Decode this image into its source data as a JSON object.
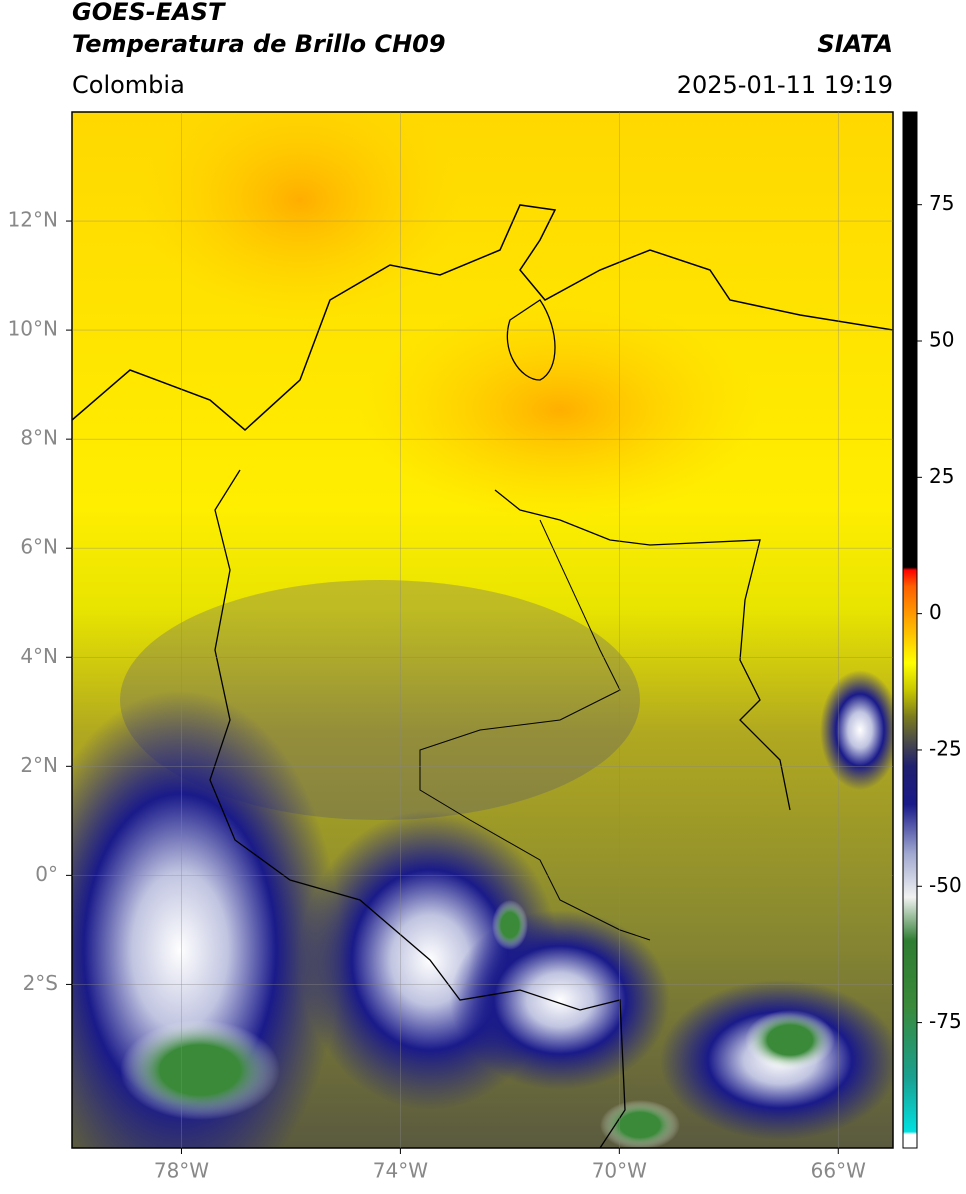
{
  "header": {
    "satellite": "GOES-EAST",
    "product": "Temperatura de Brillo CH09",
    "source": "SIATA",
    "region": "Colombia",
    "datetime": "2025-01-11 19:19"
  },
  "map": {
    "xlim": [
      -80,
      -65
    ],
    "ylim": [
      -5,
      14
    ],
    "grid": true,
    "xticks": [
      {
        "value": -78,
        "label": "78°W"
      },
      {
        "value": -74,
        "label": "74°W"
      },
      {
        "value": -70,
        "label": "70°W"
      },
      {
        "value": -66,
        "label": "66°W"
      }
    ],
    "yticks": [
      {
        "value": 12,
        "label": "12°N"
      },
      {
        "value": 10,
        "label": "10°N"
      },
      {
        "value": 8,
        "label": "8°N"
      },
      {
        "value": 6,
        "label": "6°N"
      },
      {
        "value": 4,
        "label": "4°N"
      },
      {
        "value": 2,
        "label": "2°N"
      },
      {
        "value": 0,
        "label": "0°"
      },
      {
        "value": -2,
        "label": "2°S"
      }
    ]
  },
  "colorbar": {
    "lim": [
      -98,
      92
    ],
    "ticks": [
      75,
      50,
      25,
      0,
      -25,
      -50,
      -75
    ],
    "colormap": [
      {
        "value": -98,
        "color": "#ffffff"
      },
      {
        "value": -95.5,
        "color": "#ffffff"
      },
      {
        "value": -95,
        "color": "#00e0e0"
      },
      {
        "value": -85,
        "color": "#1aa090"
      },
      {
        "value": -72,
        "color": "#3a8a3a"
      },
      {
        "value": -60,
        "color": "#2e7d32"
      },
      {
        "value": -52,
        "color": "#f2f2f2"
      },
      {
        "value": -44,
        "color": "#a0a8d0"
      },
      {
        "value": -35,
        "color": "#1a1a8a"
      },
      {
        "value": -28,
        "color": "#202070"
      },
      {
        "value": -24,
        "color": "#454550"
      },
      {
        "value": -19,
        "color": "#7a7a20"
      },
      {
        "value": -14,
        "color": "#c8c800"
      },
      {
        "value": -9,
        "color": "#ffff00"
      },
      {
        "value": -2,
        "color": "#ffb000"
      },
      {
        "value": 5,
        "color": "#ff6000"
      },
      {
        "value": 8,
        "color": "#ff0000"
      },
      {
        "value": 8.5,
        "color": "#000000"
      },
      {
        "value": 92,
        "color": "#000000"
      }
    ]
  }
}
